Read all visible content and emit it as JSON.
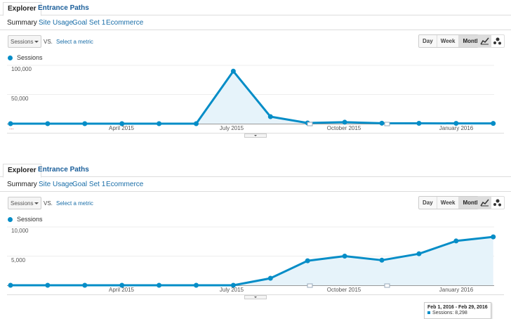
{
  "tabs": [
    "Explorer",
    "Entrance Paths"
  ],
  "subnav": [
    "Summary",
    "Site Usage",
    "Goal Set 1",
    "Ecommerce"
  ],
  "metric_dropdown": "Sessions",
  "vs_label": "VS.",
  "select_metric": "Select a metric",
  "granularity": [
    "Day",
    "Week",
    "Month"
  ],
  "legend": "Sessions",
  "colors": {
    "series": "#058dc7",
    "fill": "#e6f3fa",
    "link": "#1a6ea8"
  },
  "chart_data": [
    {
      "type": "area",
      "title": "",
      "series_name": "Sessions",
      "x": [
        "Jan 2015",
        "Feb 2015",
        "Mar 2015",
        "Apr 2015",
        "May 2015",
        "Jun 2015",
        "Jul 2015",
        "Aug 2015",
        "Sep 2015",
        "Oct 2015",
        "Nov 2015",
        "Dec 2015",
        "Jan 2016",
        "Feb 2016"
      ],
      "values": [
        0,
        0,
        0,
        0,
        0,
        0,
        90000,
        12000,
        1200,
        2500,
        800,
        600,
        500,
        400
      ],
      "ylim": [
        0,
        100000
      ],
      "yticks": [
        "100,000",
        "50,000"
      ],
      "xtick_labels": [
        "April 2015",
        "July 2015",
        "October 2015",
        "January 2016"
      ],
      "dots_label": "..."
    },
    {
      "type": "area",
      "title": "",
      "series_name": "Sessions",
      "x": [
        "Jan 2015",
        "Feb 2015",
        "Mar 2015",
        "Apr 2015",
        "May 2015",
        "Jun 2015",
        "Jul 2015",
        "Aug 2015",
        "Sep 2015",
        "Oct 2015",
        "Nov 2015",
        "Dec 2015",
        "Jan 2016",
        "Feb 2016"
      ],
      "values": [
        0,
        0,
        0,
        0,
        0,
        0,
        0,
        1200,
        4200,
        5000,
        4300,
        5400,
        7600,
        8298
      ],
      "ylim": [
        0,
        10000
      ],
      "yticks": [
        "10,000",
        "5,000"
      ],
      "xtick_labels": [
        "April 2015",
        "July 2015",
        "October 2015",
        "January 2016"
      ],
      "tooltip": {
        "range": "Feb 1, 2016 - Feb 29, 2016",
        "label": "Sessions: 8,298"
      }
    }
  ]
}
